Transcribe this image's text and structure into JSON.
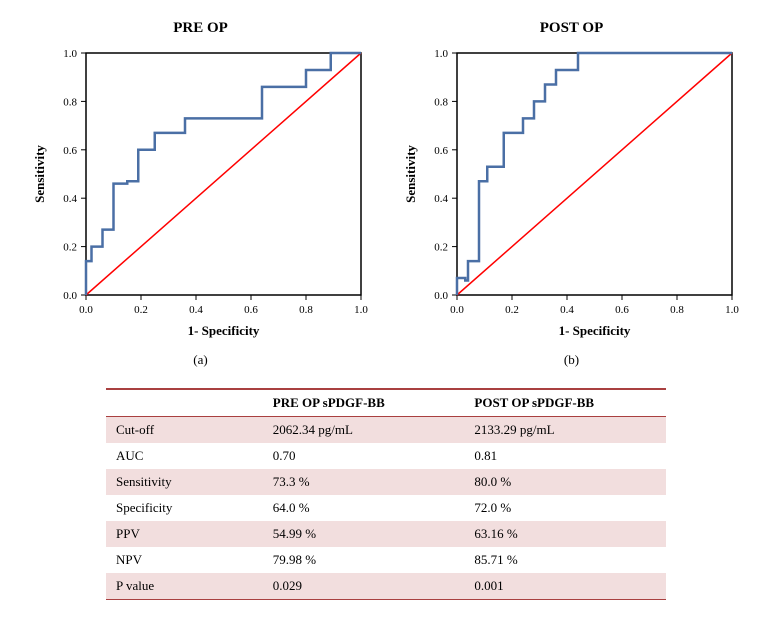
{
  "charts": [
    {
      "title": "PRE OP",
      "sublabel": "(a)",
      "type": "roc_curve",
      "xlabel": "1- Specificity",
      "ylabel": "Sensitivity",
      "xlim": [
        0.0,
        1.0
      ],
      "ylim": [
        0.0,
        1.0
      ],
      "xtick_step": 0.2,
      "ytick_step": 0.2,
      "background_color": "#ffffff",
      "axis_color": "#000000",
      "tick_fontsize": 11,
      "label_fontsize": 13,
      "label_fontweight": "bold",
      "diagonal": {
        "color": "#ff0000",
        "width": 1.5,
        "from": [
          0.0,
          0.0
        ],
        "to": [
          1.0,
          1.0
        ]
      },
      "roc": {
        "color": "#4a6fa5",
        "width": 2.5,
        "points": [
          [
            0.0,
            0.0
          ],
          [
            0.0,
            0.14
          ],
          [
            0.02,
            0.14
          ],
          [
            0.02,
            0.2
          ],
          [
            0.06,
            0.2
          ],
          [
            0.06,
            0.27
          ],
          [
            0.1,
            0.27
          ],
          [
            0.1,
            0.46
          ],
          [
            0.15,
            0.46
          ],
          [
            0.15,
            0.47
          ],
          [
            0.19,
            0.47
          ],
          [
            0.19,
            0.6
          ],
          [
            0.25,
            0.6
          ],
          [
            0.25,
            0.67
          ],
          [
            0.36,
            0.67
          ],
          [
            0.36,
            0.73
          ],
          [
            0.64,
            0.73
          ],
          [
            0.64,
            0.86
          ],
          [
            0.8,
            0.86
          ],
          [
            0.8,
            0.93
          ],
          [
            0.89,
            0.93
          ],
          [
            0.89,
            1.0
          ],
          [
            1.0,
            1.0
          ]
        ]
      }
    },
    {
      "title": "POST OP",
      "sublabel": "(b)",
      "type": "roc_curve",
      "xlabel": "1- Specificity",
      "ylabel": "Sensitivity",
      "xlim": [
        0.0,
        1.0
      ],
      "ylim": [
        0.0,
        1.0
      ],
      "xtick_step": 0.2,
      "ytick_step": 0.2,
      "background_color": "#ffffff",
      "axis_color": "#000000",
      "tick_fontsize": 11,
      "label_fontsize": 13,
      "label_fontweight": "bold",
      "diagonal": {
        "color": "#ff0000",
        "width": 1.5,
        "from": [
          0.0,
          0.0
        ],
        "to": [
          1.0,
          1.0
        ]
      },
      "roc": {
        "color": "#4a6fa5",
        "width": 2.5,
        "points": [
          [
            0.0,
            0.0
          ],
          [
            0.0,
            0.07
          ],
          [
            0.03,
            0.07
          ],
          [
            0.03,
            0.06
          ],
          [
            0.04,
            0.06
          ],
          [
            0.04,
            0.14
          ],
          [
            0.08,
            0.14
          ],
          [
            0.08,
            0.47
          ],
          [
            0.11,
            0.47
          ],
          [
            0.11,
            0.53
          ],
          [
            0.17,
            0.53
          ],
          [
            0.17,
            0.67
          ],
          [
            0.24,
            0.67
          ],
          [
            0.24,
            0.73
          ],
          [
            0.28,
            0.73
          ],
          [
            0.28,
            0.8
          ],
          [
            0.32,
            0.8
          ],
          [
            0.32,
            0.87
          ],
          [
            0.36,
            0.87
          ],
          [
            0.36,
            0.93
          ],
          [
            0.44,
            0.93
          ],
          [
            0.44,
            1.0
          ],
          [
            1.0,
            1.0
          ]
        ]
      }
    }
  ],
  "table": {
    "columns": [
      "",
      "PRE OP sPDGF-BB",
      "POST OP sPDGF-BB"
    ],
    "rows": [
      [
        "Cut-off",
        "2062.34 pg/mL",
        "2133.29 pg/mL"
      ],
      [
        "AUC",
        "0.70",
        "0.81"
      ],
      [
        "Sensitivity",
        "73.3 %",
        "80.0 %"
      ],
      [
        "Specificity",
        "64.0 %",
        "72.0 %"
      ],
      [
        "PPV",
        "54.99 %",
        "63.16 %"
      ],
      [
        "NPV",
        "79.98 %",
        "85.71 %"
      ],
      [
        "P value",
        "0.029",
        "0.001"
      ]
    ],
    "header_border_color": "#a94040",
    "row_stripe_color": "#f2dede",
    "fontsize": 13
  }
}
